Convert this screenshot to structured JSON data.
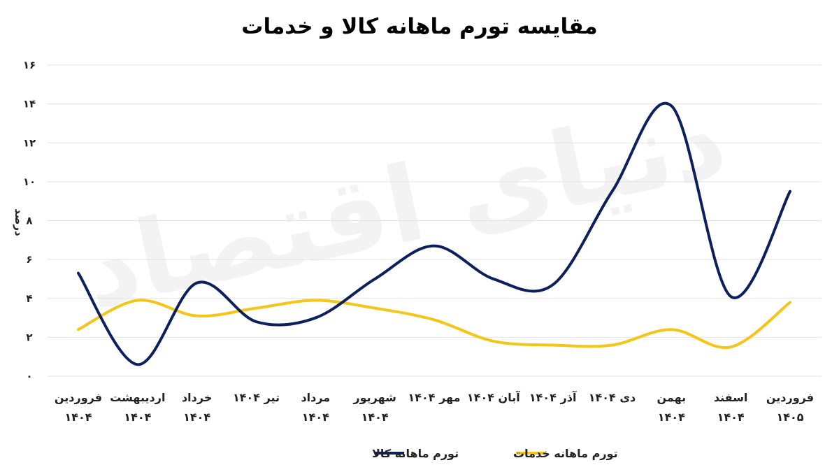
{
  "chart_data": {
    "type": "line",
    "title": "مقایسه تورم ماهانه کالا و خدمات",
    "ylabel": "درصد",
    "xlabel": "",
    "ylim": [
      0,
      16
    ],
    "yticks": [
      "۰",
      "۲",
      "۴",
      "۶",
      "۸",
      "۱۰",
      "۱۲",
      "۱۴",
      "۱۶"
    ],
    "categories": [
      [
        "فروردین",
        "۱۴۰۴"
      ],
      [
        "اردیبهشت",
        "۱۴۰۴"
      ],
      [
        "خرداد",
        "۱۴۰۴"
      ],
      [
        "تیر ۱۴۰۴"
      ],
      [
        "مرداد",
        "۱۴۰۴"
      ],
      [
        "شهریور",
        "۱۴۰۴"
      ],
      [
        "مهر ۱۴۰۴"
      ],
      [
        "آبان ۱۴۰۴"
      ],
      [
        "آذر ۱۴۰۴"
      ],
      [
        "دی ۱۴۰۴"
      ],
      [
        "بهمن",
        "۱۴۰۴"
      ],
      [
        "اسفند",
        "۱۴۰۴"
      ],
      [
        "فروردین",
        "۱۴۰۵"
      ]
    ],
    "series": [
      {
        "name": "تورم ماهانه کالا",
        "color": "#0d1f5c",
        "values": [
          5.3,
          0.6,
          4.8,
          2.8,
          3.0,
          5.0,
          6.7,
          5.0,
          4.7,
          9.5,
          13.9,
          4.1,
          9.5
        ]
      },
      {
        "name": "تورم ماهانه خدمات",
        "color": "#f5c518",
        "values": [
          2.4,
          3.9,
          3.1,
          3.5,
          3.9,
          3.5,
          2.9,
          1.8,
          1.6,
          1.6,
          2.4,
          1.5,
          3.8
        ]
      }
    ],
    "grid": true,
    "legend_position": "bottom-center"
  },
  "watermark": "دنیای اقتصاد"
}
